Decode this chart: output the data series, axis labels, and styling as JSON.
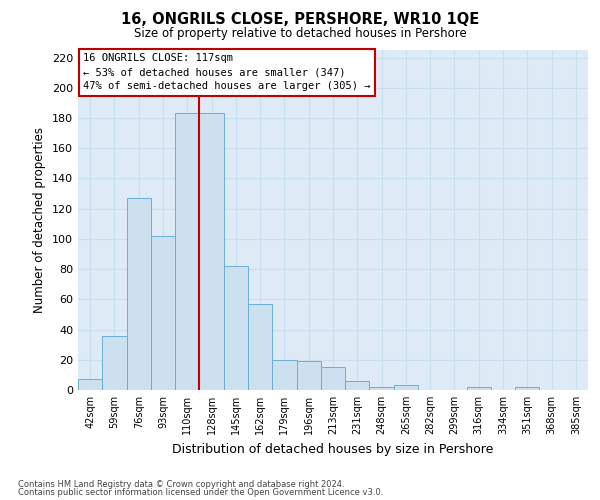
{
  "title": "16, ONGRILS CLOSE, PERSHORE, WR10 1QE",
  "subtitle": "Size of property relative to detached houses in Pershore",
  "xlabel": "Distribution of detached houses by size in Pershore",
  "ylabel": "Number of detached properties",
  "footnote1": "Contains HM Land Registry data © Crown copyright and database right 2024.",
  "footnote2": "Contains public sector information licensed under the Open Government Licence v3.0.",
  "categories": [
    "42sqm",
    "59sqm",
    "76sqm",
    "93sqm",
    "110sqm",
    "128sqm",
    "145sqm",
    "162sqm",
    "179sqm",
    "196sqm",
    "213sqm",
    "231sqm",
    "248sqm",
    "265sqm",
    "282sqm",
    "299sqm",
    "316sqm",
    "334sqm",
    "351sqm",
    "368sqm",
    "385sqm"
  ],
  "values": [
    7,
    36,
    127,
    102,
    183,
    183,
    82,
    57,
    20,
    19,
    15,
    6,
    2,
    3,
    0,
    0,
    2,
    0,
    2,
    0,
    0
  ],
  "bar_color": "#cce0f0",
  "bar_edge_color": "#6aafd6",
  "grid_color": "#c8dff0",
  "vline_color": "#c00000",
  "vline_x_index": 4.5,
  "annotation_title": "16 ONGRILS CLOSE: 117sqm",
  "annotation_line2": "← 53% of detached houses are smaller (347)",
  "annotation_line3": "47% of semi-detached houses are larger (305) →",
  "annotation_box_facecolor": "#ffffff",
  "annotation_box_edgecolor": "#c00000",
  "ylim": [
    0,
    225
  ],
  "yticks": [
    0,
    20,
    40,
    60,
    80,
    100,
    120,
    140,
    160,
    180,
    200,
    220
  ],
  "bg_color": "#ffffff",
  "plot_bg_color": "#deeaf5"
}
